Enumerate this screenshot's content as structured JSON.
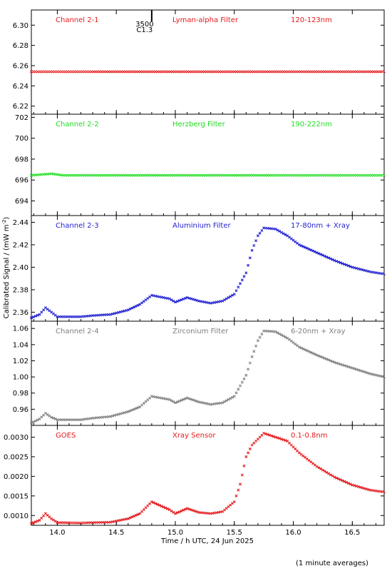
{
  "x_axis": {
    "label": "Time / h UTC, 24 Jun 2025",
    "range": [
      13.78,
      16.77
    ],
    "ticks": [
      14.0,
      14.5,
      15.0,
      15.5,
      16.0,
      16.5
    ],
    "tick_labels": [
      "14.0",
      "14.5",
      "15.0",
      "15.5",
      "16.0",
      "16.5"
    ]
  },
  "y_axis_label": "Calibrated Signal / (mW m",
  "y_axis_label_sup": "-2",
  "y_axis_label_end": ")",
  "footnote": "(1 minute averages)",
  "marker": {
    "x": 14.8,
    "label_top": "3500",
    "label_bottom": "C1.3"
  },
  "chart_data": [
    {
      "type": "scatter",
      "name": "Channel 2-1",
      "labels": [
        "Channel 2-1",
        "Lyman-alpha Filter",
        "120-123nm"
      ],
      "color": "#e41a1c",
      "ylim": [
        6.212,
        6.315
      ],
      "y_ticks": [
        6.22,
        6.24,
        6.26,
        6.28,
        6.3
      ],
      "y_tick_labels": [
        "6.22",
        "6.24",
        "6.26",
        "6.28",
        "6.30"
      ],
      "x_range": [
        13.78,
        16.77
      ],
      "points": [
        [
          13.78,
          6.254
        ],
        [
          16.77,
          6.254
        ]
      ]
    },
    {
      "type": "scatter",
      "name": "Channel 2-2",
      "labels": [
        "Channel 2-2",
        "Herzberg Filter",
        "190-222nm"
      ],
      "color": "#22dd22",
      "ylim": [
        692.6,
        702.3
      ],
      "y_ticks": [
        694,
        696,
        698,
        700,
        702
      ],
      "y_tick_labels": [
        "694",
        "696",
        "698",
        "700",
        "702"
      ],
      "x_range": [
        13.78,
        16.77
      ],
      "points": [
        [
          13.78,
          696.45
        ],
        [
          13.95,
          696.6
        ],
        [
          14.05,
          696.45
        ],
        [
          16.77,
          696.45
        ]
      ]
    },
    {
      "type": "scatter",
      "name": "Channel 2-3",
      "labels": [
        "Channel 2-3",
        "Aluminium Filter",
        "17-80nm + Xray"
      ],
      "color": "#1f1fd2",
      "ylim": [
        2.352,
        2.446
      ],
      "y_ticks": [
        2.36,
        2.38,
        2.4,
        2.42,
        2.44
      ],
      "y_tick_labels": [
        "2.36",
        "2.38",
        "2.40",
        "2.42",
        "2.44"
      ],
      "x_range": [
        13.78,
        16.77
      ],
      "points": [
        [
          13.78,
          2.355
        ],
        [
          13.85,
          2.358
        ],
        [
          13.9,
          2.364
        ],
        [
          13.95,
          2.36
        ],
        [
          14.0,
          2.356
        ],
        [
          14.2,
          2.356
        ],
        [
          14.3,
          2.357
        ],
        [
          14.45,
          2.358
        ],
        [
          14.6,
          2.362
        ],
        [
          14.7,
          2.367
        ],
        [
          14.8,
          2.375
        ],
        [
          14.95,
          2.372
        ],
        [
          15.0,
          2.369
        ],
        [
          15.1,
          2.373
        ],
        [
          15.2,
          2.37
        ],
        [
          15.3,
          2.368
        ],
        [
          15.4,
          2.37
        ],
        [
          15.5,
          2.376
        ],
        [
          15.6,
          2.395
        ],
        [
          15.65,
          2.415
        ],
        [
          15.7,
          2.428
        ],
        [
          15.75,
          2.435
        ],
        [
          15.85,
          2.434
        ],
        [
          15.95,
          2.428
        ],
        [
          16.05,
          2.42
        ],
        [
          16.2,
          2.413
        ],
        [
          16.35,
          2.406
        ],
        [
          16.5,
          2.4
        ],
        [
          16.65,
          2.396
        ],
        [
          16.77,
          2.394
        ]
      ]
    },
    {
      "type": "scatter",
      "name": "Channel 2-4",
      "labels": [
        "Channel 2-4",
        "Zirconium Filter",
        "6-20nm + Xray"
      ],
      "color": "#808080",
      "ylim": [
        0.94,
        1.069
      ],
      "y_ticks": [
        0.96,
        0.98,
        1.0,
        1.02,
        1.04,
        1.06
      ],
      "y_tick_labels": [
        "0.96",
        "0.98",
        "1.00",
        "1.02",
        "1.04",
        "1.06"
      ],
      "x_range": [
        13.78,
        16.77
      ],
      "points": [
        [
          13.78,
          0.943
        ],
        [
          13.85,
          0.948
        ],
        [
          13.9,
          0.955
        ],
        [
          13.95,
          0.95
        ],
        [
          14.0,
          0.947
        ],
        [
          14.2,
          0.947
        ],
        [
          14.3,
          0.949
        ],
        [
          14.45,
          0.951
        ],
        [
          14.6,
          0.957
        ],
        [
          14.7,
          0.963
        ],
        [
          14.8,
          0.976
        ],
        [
          14.95,
          0.972
        ],
        [
          15.0,
          0.968
        ],
        [
          15.1,
          0.974
        ],
        [
          15.2,
          0.969
        ],
        [
          15.3,
          0.966
        ],
        [
          15.4,
          0.968
        ],
        [
          15.5,
          0.976
        ],
        [
          15.6,
          1.002
        ],
        [
          15.65,
          1.025
        ],
        [
          15.7,
          1.045
        ],
        [
          15.75,
          1.057
        ],
        [
          15.85,
          1.056
        ],
        [
          15.95,
          1.048
        ],
        [
          16.05,
          1.037
        ],
        [
          16.2,
          1.027
        ],
        [
          16.35,
          1.018
        ],
        [
          16.5,
          1.011
        ],
        [
          16.65,
          1.004
        ],
        [
          16.77,
          1.0
        ]
      ]
    },
    {
      "type": "scatter",
      "name": "GOES",
      "labels": [
        "GOES",
        "Xray Sensor",
        "0.1-0.8nm"
      ],
      "color": "#e41a1c",
      "ylim": [
        0.00075,
        0.0033
      ],
      "y_ticks": [
        0.001,
        0.0015,
        0.002,
        0.0025,
        0.003
      ],
      "y_tick_labels": [
        "0.0010",
        "0.0015",
        "0.0020",
        "0.0025",
        "0.0030"
      ],
      "x_range": [
        13.78,
        16.77
      ],
      "points": [
        [
          13.78,
          0.0008
        ],
        [
          13.85,
          0.00088
        ],
        [
          13.9,
          0.00105
        ],
        [
          13.95,
          0.00092
        ],
        [
          14.0,
          0.00082
        ],
        [
          14.2,
          0.00081
        ],
        [
          14.3,
          0.00082
        ],
        [
          14.45,
          0.00083
        ],
        [
          14.6,
          0.00092
        ],
        [
          14.7,
          0.00105
        ],
        [
          14.8,
          0.00135
        ],
        [
          14.95,
          0.00115
        ],
        [
          15.0,
          0.00105
        ],
        [
          15.1,
          0.00118
        ],
        [
          15.2,
          0.00108
        ],
        [
          15.3,
          0.00105
        ],
        [
          15.4,
          0.0011
        ],
        [
          15.5,
          0.00135
        ],
        [
          15.55,
          0.0018
        ],
        [
          15.6,
          0.0025
        ],
        [
          15.65,
          0.0028
        ],
        [
          15.75,
          0.0031
        ],
        [
          15.85,
          0.003
        ],
        [
          15.95,
          0.0029
        ],
        [
          16.05,
          0.0026
        ],
        [
          16.2,
          0.00225
        ],
        [
          16.35,
          0.00198
        ],
        [
          16.5,
          0.00178
        ],
        [
          16.65,
          0.00165
        ],
        [
          16.77,
          0.0016
        ]
      ]
    }
  ]
}
